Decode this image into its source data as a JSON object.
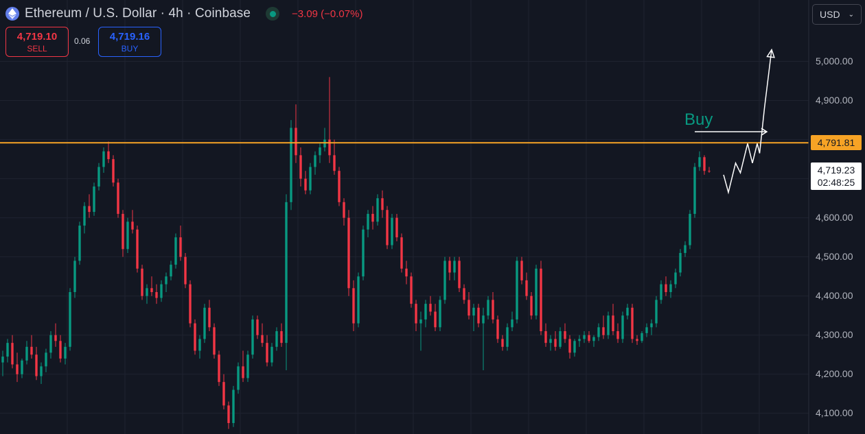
{
  "header": {
    "title": "Ethereum / U.S. Dollar · 4h · Coinbase",
    "change": "−3.09 (−0.07%)",
    "sell_price": "4,719.10",
    "sell_label": "SELL",
    "spread": "0.06",
    "buy_price": "4,719.16",
    "buy_label": "BUY",
    "currency": "USD"
  },
  "colors": {
    "up": "#089981",
    "down": "#f23645",
    "level": "#f7a325",
    "background": "#131722"
  },
  "chart_data": {
    "type": "candlestick",
    "symbol": "ETHUSD",
    "interval": "4h",
    "exchange": "Coinbase",
    "ylim": [
      4047,
      5157
    ],
    "y_ticks": [
      "5,000.00",
      "4,900.00",
      "4,800.00",
      "4,700.00",
      "4,600.00",
      "4,500.00",
      "4,400.00",
      "4,300.00",
      "4,200.00",
      "4,100.00"
    ],
    "y_tick_values": [
      5000,
      4900,
      4800,
      4700,
      4600,
      4500,
      4400,
      4300,
      4200,
      4100
    ],
    "resistance_level": 4791.81,
    "resistance_label": "4,791.81",
    "last_price": 4719.23,
    "last_price_label": "4,719.23",
    "countdown": "02:48:25",
    "annotation_text": "Buy",
    "candles": [
      [
        4230,
        4260,
        4195,
        4245
      ],
      [
        4245,
        4290,
        4230,
        4280
      ],
      [
        4280,
        4300,
        4215,
        4225
      ],
      [
        4225,
        4255,
        4180,
        4200
      ],
      [
        4200,
        4240,
        4190,
        4235
      ],
      [
        4235,
        4285,
        4225,
        4270
      ],
      [
        4270,
        4300,
        4240,
        4250
      ],
      [
        4250,
        4270,
        4185,
        4195
      ],
      [
        4195,
        4230,
        4175,
        4220
      ],
      [
        4220,
        4265,
        4205,
        4255
      ],
      [
        4255,
        4310,
        4240,
        4300
      ],
      [
        4300,
        4330,
        4270,
        4285
      ],
      [
        4285,
        4300,
        4230,
        4240
      ],
      [
        4240,
        4280,
        4225,
        4270
      ],
      [
        4270,
        4420,
        4260,
        4410
      ],
      [
        4410,
        4500,
        4395,
        4490
      ],
      [
        4490,
        4590,
        4480,
        4580
      ],
      [
        4580,
        4640,
        4560,
        4630
      ],
      [
        4630,
        4660,
        4600,
        4615
      ],
      [
        4615,
        4690,
        4605,
        4680
      ],
      [
        4680,
        4740,
        4670,
        4730
      ],
      [
        4730,
        4780,
        4715,
        4770
      ],
      [
        4770,
        4795,
        4740,
        4750
      ],
      [
        4750,
        4760,
        4680,
        4690
      ],
      [
        4690,
        4700,
        4600,
        4610
      ],
      [
        4610,
        4620,
        4500,
        4520
      ],
      [
        4520,
        4600,
        4510,
        4590
      ],
      [
        4590,
        4620,
        4560,
        4570
      ],
      [
        4570,
        4580,
        4460,
        4470
      ],
      [
        4470,
        4480,
        4390,
        4400
      ],
      [
        4400,
        4430,
        4380,
        4420
      ],
      [
        4420,
        4450,
        4400,
        4410
      ],
      [
        4410,
        4430,
        4380,
        4395
      ],
      [
        4395,
        4440,
        4385,
        4430
      ],
      [
        4430,
        4460,
        4410,
        4450
      ],
      [
        4450,
        4490,
        4440,
        4480
      ],
      [
        4480,
        4560,
        4470,
        4550
      ],
      [
        4550,
        4580,
        4490,
        4500
      ],
      [
        4500,
        4510,
        4420,
        4430
      ],
      [
        4430,
        4440,
        4320,
        4330
      ],
      [
        4330,
        4340,
        4250,
        4260
      ],
      [
        4260,
        4300,
        4240,
        4290
      ],
      [
        4290,
        4380,
        4280,
        4370
      ],
      [
        4370,
        4390,
        4310,
        4320
      ],
      [
        4320,
        4330,
        4240,
        4250
      ],
      [
        4250,
        4260,
        4170,
        4180
      ],
      [
        4180,
        4200,
        4110,
        4120
      ],
      [
        4120,
        4130,
        4060,
        4075
      ],
      [
        4075,
        4170,
        4065,
        4160
      ],
      [
        4160,
        4230,
        4150,
        4220
      ],
      [
        4220,
        4260,
        4180,
        4190
      ],
      [
        4190,
        4260,
        4180,
        4250
      ],
      [
        4250,
        4350,
        4240,
        4340
      ],
      [
        4340,
        4350,
        4290,
        4300
      ],
      [
        4300,
        4330,
        4270,
        4280
      ],
      [
        4280,
        4300,
        4220,
        4230
      ],
      [
        4230,
        4280,
        4220,
        4270
      ],
      [
        4270,
        4320,
        4260,
        4310
      ],
      [
        4310,
        4330,
        4270,
        4280
      ],
      [
        4280,
        4660,
        4210,
        4640
      ],
      [
        4640,
        4850,
        4620,
        4830
      ],
      [
        4830,
        4890,
        4740,
        4760
      ],
      [
        4760,
        4780,
        4680,
        4700
      ],
      [
        4700,
        4720,
        4660,
        4670
      ],
      [
        4670,
        4740,
        4660,
        4730
      ],
      [
        4730,
        4770,
        4710,
        4760
      ],
      [
        4760,
        4790,
        4740,
        4780
      ],
      [
        4780,
        4830,
        4770,
        4800
      ],
      [
        4800,
        4960,
        4740,
        4760
      ],
      [
        4760,
        4800,
        4710,
        4720
      ],
      [
        4720,
        4730,
        4630,
        4640
      ],
      [
        4640,
        4650,
        4580,
        4600
      ],
      [
        4600,
        4620,
        4400,
        4420
      ],
      [
        4420,
        4440,
        4310,
        4330
      ],
      [
        4330,
        4460,
        4320,
        4450
      ],
      [
        4450,
        4580,
        4440,
        4570
      ],
      [
        4570,
        4620,
        4550,
        4610
      ],
      [
        4610,
        4630,
        4570,
        4590
      ],
      [
        4590,
        4660,
        4580,
        4650
      ],
      [
        4650,
        4670,
        4600,
        4620
      ],
      [
        4620,
        4630,
        4520,
        4530
      ],
      [
        4530,
        4610,
        4520,
        4600
      ],
      [
        4600,
        4610,
        4540,
        4550
      ],
      [
        4550,
        4560,
        4460,
        4470
      ],
      [
        4470,
        4490,
        4430,
        4450
      ],
      [
        4450,
        4460,
        4370,
        4380
      ],
      [
        4380,
        4390,
        4310,
        4330
      ],
      [
        4330,
        4360,
        4260,
        4340
      ],
      [
        4340,
        4390,
        4320,
        4380
      ],
      [
        4380,
        4400,
        4350,
        4360
      ],
      [
        4360,
        4380,
        4310,
        4320
      ],
      [
        4320,
        4400,
        4310,
        4390
      ],
      [
        4390,
        4500,
        4380,
        4490
      ],
      [
        4490,
        4500,
        4440,
        4460
      ],
      [
        4460,
        4500,
        4440,
        4490
      ],
      [
        4490,
        4500,
        4410,
        4420
      ],
      [
        4420,
        4430,
        4380,
        4390
      ],
      [
        4390,
        4410,
        4340,
        4350
      ],
      [
        4350,
        4380,
        4310,
        4370
      ],
      [
        4370,
        4380,
        4320,
        4330
      ],
      [
        4330,
        4370,
        4210,
        4350
      ],
      [
        4350,
        4400,
        4340,
        4390
      ],
      [
        4390,
        4410,
        4330,
        4340
      ],
      [
        4340,
        4350,
        4280,
        4290
      ],
      [
        4290,
        4300,
        4260,
        4270
      ],
      [
        4270,
        4330,
        4260,
        4320
      ],
      [
        4320,
        4360,
        4310,
        4340
      ],
      [
        4340,
        4500,
        4330,
        4490
      ],
      [
        4490,
        4500,
        4430,
        4440
      ],
      [
        4440,
        4460,
        4390,
        4400
      ],
      [
        4400,
        4410,
        4340,
        4350
      ],
      [
        4350,
        4480,
        4340,
        4470
      ],
      [
        4470,
        4490,
        4300,
        4310
      ],
      [
        4310,
        4330,
        4270,
        4280
      ],
      [
        4280,
        4300,
        4260,
        4290
      ],
      [
        4290,
        4310,
        4260,
        4270
      ],
      [
        4270,
        4320,
        4265,
        4310
      ],
      [
        4310,
        4330,
        4280,
        4290
      ],
      [
        4290,
        4300,
        4240,
        4255
      ],
      [
        4255,
        4290,
        4245,
        4285
      ],
      [
        4285,
        4300,
        4270,
        4290
      ],
      [
        4290,
        4310,
        4280,
        4300
      ],
      [
        4300,
        4310,
        4280,
        4285
      ],
      [
        4285,
        4300,
        4270,
        4295
      ],
      [
        4295,
        4330,
        4285,
        4320
      ],
      [
        4320,
        4350,
        4290,
        4300
      ],
      [
        4300,
        4360,
        4290,
        4350
      ],
      [
        4350,
        4380,
        4300,
        4310
      ],
      [
        4310,
        4330,
        4280,
        4290
      ],
      [
        4290,
        4360,
        4280,
        4350
      ],
      [
        4350,
        4380,
        4340,
        4370
      ],
      [
        4370,
        4380,
        4280,
        4290
      ],
      [
        4290,
        4300,
        4275,
        4285
      ],
      [
        4285,
        4310,
        4280,
        4305
      ],
      [
        4305,
        4330,
        4295,
        4320
      ],
      [
        4320,
        4340,
        4300,
        4330
      ],
      [
        4330,
        4400,
        4320,
        4390
      ],
      [
        4390,
        4440,
        4380,
        4430
      ],
      [
        4430,
        4450,
        4400,
        4410
      ],
      [
        4410,
        4440,
        4395,
        4430
      ],
      [
        4430,
        4470,
        4420,
        4460
      ],
      [
        4460,
        4520,
        4450,
        4510
      ],
      [
        4510,
        4540,
        4500,
        4530
      ],
      [
        4530,
        4620,
        4520,
        4610
      ],
      [
        4610,
        4740,
        4600,
        4730
      ],
      [
        4730,
        4770,
        4720,
        4755
      ],
      [
        4755,
        4760,
        4710,
        4720
      ],
      [
        4720,
        4730,
        4715,
        4719
      ]
    ],
    "projection_path": [
      [
        3,
        4710
      ],
      [
        4,
        4665
      ],
      [
        5.5,
        4740
      ],
      [
        6.5,
        4715
      ],
      [
        8,
        4790
      ],
      [
        9,
        4740
      ],
      [
        10,
        4790
      ],
      [
        10.5,
        4765
      ],
      [
        11.5,
        4880
      ],
      [
        13,
        5030
      ]
    ],
    "buy_arrow": [
      [
        -1,
        4820
      ],
      [
        10,
        4820
      ]
    ]
  }
}
